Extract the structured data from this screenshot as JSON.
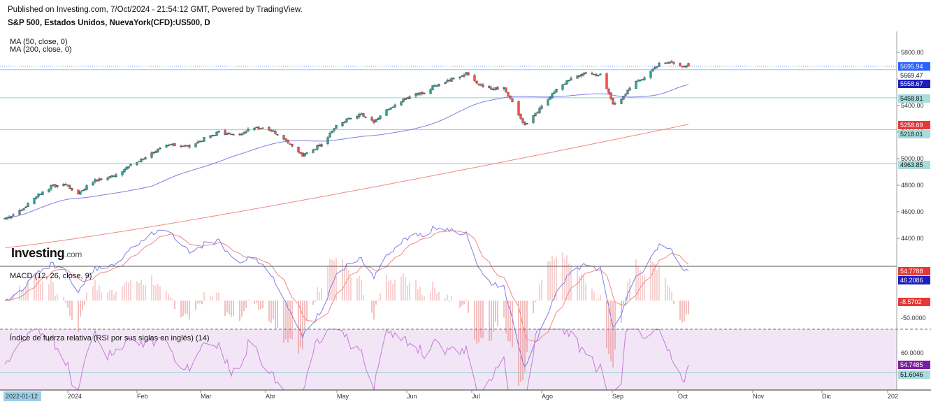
{
  "header": {
    "published": "Published on Investing.com, 7/Oct/2024 - 21:54:12 GMT, Powered by TradingView.",
    "symbol": "S&P 500, Estados Unidos, NuevaYork(CFD):US500, D"
  },
  "legend": {
    "ma50": "MA (50, close, 0)",
    "ma200": "MA (200, close, 0)",
    "macd": "MACD (12, 26, close, 9)",
    "rsi": "Índice de fuerza relativa (RSI por sus siglas en inglés) (14)"
  },
  "logo": {
    "main": "Investing",
    "suffix": ".com"
  },
  "colors": {
    "up": "#26a69a",
    "down": "#ef5350",
    "ma50": "#7e7ee6",
    "ma200": "#ee8a86",
    "macd": "#7e7ee6",
    "signal": "#ee8a86",
    "rsi": "#c77ad6",
    "rsi_bg": "#f2e6f6",
    "hline": "#8fd0d4"
  },
  "chart_data": {
    "type": "candlestick",
    "price_axis": {
      "ticks": [
        4400,
        4600,
        4800,
        5000,
        5200,
        5400,
        5600,
        5800
      ],
      "labels": [
        "4400.00",
        "4600.00",
        "4800.00",
        "5000.00",
        "5200.00",
        "5400.00",
        "5600.00",
        "5800.00"
      ]
    },
    "x_axis": {
      "labels": [
        "2024",
        "Feb",
        "Mar",
        "Abr",
        "May",
        "Jun",
        "Jul",
        "Ago",
        "Sep",
        "Oct",
        "Nov",
        "Dic",
        "202"
      ]
    },
    "start_date_label": "2022-01-12",
    "price_tags": [
      {
        "value": 5695.94,
        "label": "5695.94",
        "bg": "#2962ff",
        "fg": "#ffffff"
      },
      {
        "value": 5669.47,
        "label": "5669.47",
        "bg": "#ffffff",
        "fg": "#111111"
      },
      {
        "value": 5558.67,
        "label": "5558.67",
        "bg": "#1e1ebe",
        "fg": "#ffffff"
      },
      {
        "value": 5458.81,
        "label": "5458.81",
        "bg": "#a8dcdc",
        "fg": "#111111"
      },
      {
        "value": 5258.69,
        "label": "5258.69",
        "bg": "#e53935",
        "fg": "#ffffff"
      },
      {
        "value": 5218.01,
        "label": "5218.01",
        "bg": "#a8dcdc",
        "fg": "#111111"
      },
      {
        "value": 4963.85,
        "label": "4963.85",
        "bg": "#a8dcdc",
        "fg": "#111111"
      }
    ],
    "horizontal_levels": [
      5669.47,
      5458.81,
      5218.01,
      4963.85
    ],
    "last_price": 5695.94,
    "ma50_last": 5558.67,
    "ma200_last": 5258.69,
    "close_anchors": [
      [
        0,
        4550
      ],
      [
        8,
        4610
      ],
      [
        15,
        4720
      ],
      [
        22,
        4790
      ],
      [
        28,
        4810
      ],
      [
        35,
        4740
      ],
      [
        42,
        4830
      ],
      [
        50,
        4860
      ],
      [
        58,
        4930
      ],
      [
        65,
        4990
      ],
      [
        72,
        5060
      ],
      [
        80,
        5110
      ],
      [
        88,
        5090
      ],
      [
        95,
        5150
      ],
      [
        102,
        5200
      ],
      [
        110,
        5170
      ],
      [
        118,
        5240
      ],
      [
        125,
        5230
      ],
      [
        132,
        5170
      ],
      [
        138,
        5080
      ],
      [
        142,
        5020
      ],
      [
        148,
        5080
      ],
      [
        152,
        5130
      ],
      [
        158,
        5250
      ],
      [
        164,
        5300
      ],
      [
        170,
        5330
      ],
      [
        176,
        5270
      ],
      [
        182,
        5360
      ],
      [
        188,
        5420
      ],
      [
        194,
        5480
      ],
      [
        200,
        5500
      ],
      [
        206,
        5560
      ],
      [
        212,
        5590
      ],
      [
        220,
        5640
      ],
      [
        226,
        5560
      ],
      [
        232,
        5520
      ],
      [
        238,
        5540
      ],
      [
        242,
        5420
      ],
      [
        248,
        5250
      ],
      [
        254,
        5350
      ],
      [
        260,
        5470
      ],
      [
        266,
        5560
      ],
      [
        272,
        5620
      ],
      [
        278,
        5640
      ],
      [
        284,
        5630
      ],
      [
        290,
        5420
      ],
      [
        294,
        5440
      ],
      [
        300,
        5580
      ],
      [
        306,
        5620
      ],
      [
        312,
        5720
      ],
      [
        318,
        5730
      ],
      [
        322,
        5700
      ],
      [
        326,
        5700
      ]
    ],
    "macd": {
      "axis_labels": [
        "-50.0000"
      ],
      "axis_values": [
        -50
      ],
      "last_macd": 46.2086,
      "last_signal": 54.7788,
      "last_hist": -8.5702,
      "tags": [
        {
          "label": "54.7788",
          "bg": "#e53935",
          "fg": "#ffffff"
        },
        {
          "label": "46.2086",
          "bg": "#1e1ebe",
          "fg": "#ffffff"
        },
        {
          "label": "-8.5702",
          "bg": "#e53935",
          "fg": "#ffffff"
        }
      ]
    },
    "rsi": {
      "axis_labels": [
        "60.0000"
      ],
      "axis_values": [
        60
      ],
      "last_value": 54.7485,
      "level": 51.6046,
      "tags": [
        {
          "label": "54.7485",
          "bg": "#7b1fa2",
          "fg": "#ffffff"
        },
        {
          "label": "51.6046",
          "bg": "#a8dcdc",
          "fg": "#111111"
        }
      ]
    }
  }
}
